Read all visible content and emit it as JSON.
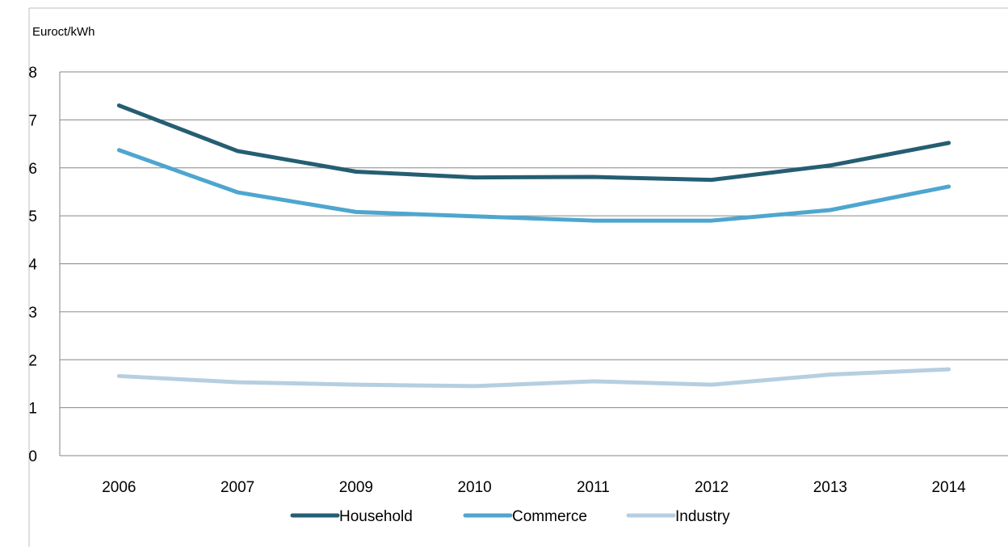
{
  "chart_data": {
    "type": "line",
    "title": "",
    "xlabel": "",
    "ylabel": "Euroct/kWh",
    "categories": [
      "2006",
      "2007",
      "2009",
      "2010",
      "2011",
      "2012",
      "2013",
      "2014"
    ],
    "ylim": [
      0,
      8
    ],
    "yticks": [
      0,
      1,
      2,
      3,
      4,
      5,
      6,
      7,
      8
    ],
    "grid": true,
    "legend_position": "bottom",
    "series": [
      {
        "name": "Household",
        "color": "#255e72",
        "values": [
          7.3,
          6.35,
          5.92,
          5.8,
          5.81,
          5.75,
          6.05,
          6.52
        ]
      },
      {
        "name": "Commerce",
        "color": "#4ea6cf",
        "values": [
          6.37,
          5.49,
          5.08,
          4.99,
          4.9,
          4.9,
          5.12,
          5.61
        ]
      },
      {
        "name": "Industry",
        "color": "#b6cfe0",
        "values": [
          1.66,
          1.53,
          1.48,
          1.45,
          1.55,
          1.48,
          1.69,
          1.8
        ]
      }
    ]
  }
}
